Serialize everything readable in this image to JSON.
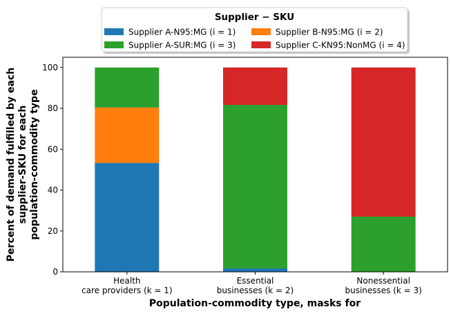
{
  "chart_data": {
    "type": "bar",
    "stacked": true,
    "legend_title": "Supplier − SKU",
    "legend_position": "top-center",
    "xlabel": "Population-commodity type, masks for",
    "ylabel_lines": [
      "Percent of demand fulfilled by each",
      "supplier-SKU for each",
      "population-commodity type"
    ],
    "categories": [
      [
        "Health",
        "care providers (k = 1)"
      ],
      [
        "Essential",
        "businesses (k = 2)"
      ],
      [
        "Nonessential",
        "businesses (k = 3)"
      ]
    ],
    "ylim": [
      0,
      105
    ],
    "yticks": [
      0,
      20,
      40,
      60,
      80,
      100
    ],
    "series": [
      {
        "name": "Supplier A-N95:MG (i = 1)",
        "color": "#1f77b4",
        "values": [
          53.3,
          1.7,
          0
        ]
      },
      {
        "name": "Supplier B-N95:MG (i = 2)",
        "color": "#ff7f0e",
        "values": [
          27.1,
          0,
          0
        ]
      },
      {
        "name": "Supplier A-SUR:MG (i = 3)",
        "color": "#2ca02c",
        "values": [
          19.6,
          80.0,
          27.0
        ]
      },
      {
        "name": "Supplier C-KN95:NonMG (i = 4)",
        "color": "#d62728",
        "values": [
          0,
          18.3,
          73.0
        ]
      }
    ],
    "legend_order": [
      0,
      2,
      1,
      3
    ]
  }
}
